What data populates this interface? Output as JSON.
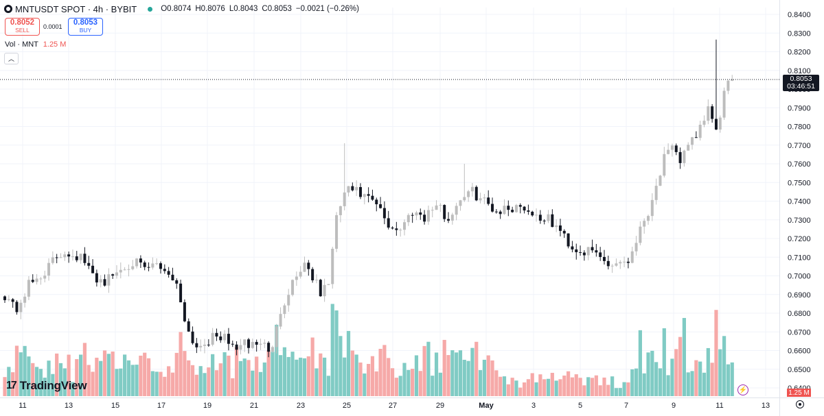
{
  "header": {
    "title": "MNTUSDT SPOT · 4h · BYBIT",
    "open": "O0.8074",
    "high": "H0.8076",
    "low": "L0.8043",
    "close": "C0.8053",
    "change": "−0.0021 (−0.26%)"
  },
  "trade": {
    "sell_price": "0.8052",
    "sell_label": "SELL",
    "spread": "0.0001",
    "buy_price": "0.8053",
    "buy_label": "BUY"
  },
  "volume_legend": {
    "label": "Vol · MNT",
    "value": "1.25 M"
  },
  "last_price": {
    "price": "0.8053",
    "countdown": "03:46:51"
  },
  "volume_tag": "1.25 M",
  "branding": "TradingView",
  "colors": {
    "up": "#bdbdbd",
    "down": "#131722",
    "vol_up": "#80cbc4",
    "vol_down": "#f6a9a8",
    "axis_text": "#131722"
  },
  "chart_data": {
    "type": "candlestick",
    "symbol": "MNTUSDT",
    "interval": "4h",
    "y_ticks": [
      "0.8400",
      "0.8300",
      "0.8200",
      "0.8100",
      "0.8000",
      "0.7900",
      "0.7800",
      "0.7700",
      "0.7600",
      "0.7500",
      "0.7400",
      "0.7300",
      "0.7200",
      "0.7100",
      "0.7000",
      "0.6900",
      "0.6800",
      "0.6700",
      "0.6600",
      "0.6500",
      "0.6400"
    ],
    "ylim": [
      0.64,
      0.84
    ],
    "x_ticks": [
      "11",
      "13",
      "15",
      "17",
      "19",
      "21",
      "23",
      "25",
      "27",
      "29",
      "May",
      "3",
      "5",
      "7",
      "9",
      "11",
      "13"
    ],
    "keypoints": [
      [
        0,
        0.69
      ],
      [
        3,
        0.682
      ],
      [
        6,
        0.695
      ],
      [
        9,
        0.7
      ],
      [
        13,
        0.71
      ],
      [
        15,
        0.713
      ],
      [
        19,
        0.71
      ],
      [
        22,
        0.7
      ],
      [
        25,
        0.697
      ],
      [
        28,
        0.702
      ],
      [
        32,
        0.708
      ],
      [
        35,
        0.703
      ],
      [
        38,
        0.706
      ],
      [
        41,
        0.702
      ],
      [
        43,
        0.695
      ],
      [
        46,
        0.67
      ],
      [
        48,
        0.662
      ],
      [
        50,
        0.665
      ],
      [
        54,
        0.668
      ],
      [
        57,
        0.662
      ],
      [
        60,
        0.663
      ],
      [
        64,
        0.664
      ],
      [
        67,
        0.66
      ],
      [
        69,
        0.682
      ],
      [
        72,
        0.697
      ],
      [
        75,
        0.707
      ],
      [
        77,
        0.7
      ],
      [
        79,
        0.69
      ],
      [
        81,
        0.697
      ],
      [
        83,
        0.73
      ],
      [
        85,
        0.745
      ],
      [
        87,
        0.746
      ],
      [
        90,
        0.742
      ],
      [
        93,
        0.738
      ],
      [
        96,
        0.727
      ],
      [
        99,
        0.725
      ],
      [
        102,
        0.735
      ],
      [
        105,
        0.732
      ],
      [
        108,
        0.738
      ],
      [
        111,
        0.73
      ],
      [
        114,
        0.742
      ],
      [
        117,
        0.745
      ],
      [
        120,
        0.74
      ],
      [
        123,
        0.735
      ],
      [
        126,
        0.736
      ],
      [
        129,
        0.738
      ],
      [
        133,
        0.732
      ],
      [
        136,
        0.73
      ],
      [
        139,
        0.724
      ],
      [
        142,
        0.715
      ],
      [
        145,
        0.713
      ],
      [
        148,
        0.712
      ],
      [
        151,
        0.706
      ],
      [
        154,
        0.708
      ],
      [
        156,
        0.708
      ],
      [
        158,
        0.72
      ],
      [
        161,
        0.735
      ],
      [
        163,
        0.748
      ],
      [
        165,
        0.763
      ],
      [
        167,
        0.767
      ],
      [
        169,
        0.762
      ],
      [
        171,
        0.772
      ],
      [
        173,
        0.772
      ],
      [
        176,
        0.79
      ],
      [
        178,
        0.776
      ],
      [
        180,
        0.798
      ],
      [
        182,
        0.805
      ]
    ],
    "volume_ylim": [
      0,
      0.05
    ]
  }
}
